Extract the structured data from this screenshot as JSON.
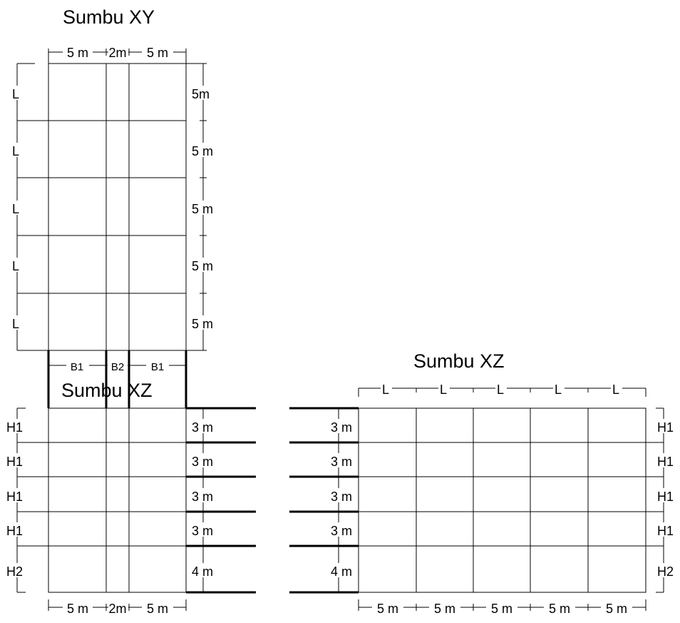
{
  "plan": {
    "title": "Sumbu XY",
    "top_dims": [
      "5 m",
      "2m",
      "5 m"
    ],
    "left_labels": [
      "L",
      "L",
      "L",
      "L",
      "L"
    ],
    "right_dims": [
      "5m",
      "5 m",
      "5 m",
      "5 m",
      "5 m"
    ]
  },
  "section_left": {
    "title": "Sumbu XZ",
    "top_labels": [
      "B1",
      "B2",
      "B1"
    ],
    "left_labels": [
      "H1",
      "H1",
      "H1",
      "H1",
      "H2"
    ],
    "right_dims": [
      "3 m",
      "3 m",
      "3 m",
      "3 m",
      "4 m"
    ],
    "bottom_dims": [
      "5 m",
      "2m",
      "5 m"
    ]
  },
  "section_right": {
    "title": "Sumbu XZ",
    "top_labels": [
      "L",
      "L",
      "L",
      "L",
      "L"
    ],
    "left_dims": [
      "3 m",
      "3 m",
      "3 m",
      "3 m",
      "4 m"
    ],
    "right_labels": [
      "H1",
      "H1",
      "H1",
      "H1",
      "H2"
    ],
    "bottom_dims": [
      "5 m",
      "5 m",
      "5 m",
      "5 m",
      "5 m"
    ]
  }
}
